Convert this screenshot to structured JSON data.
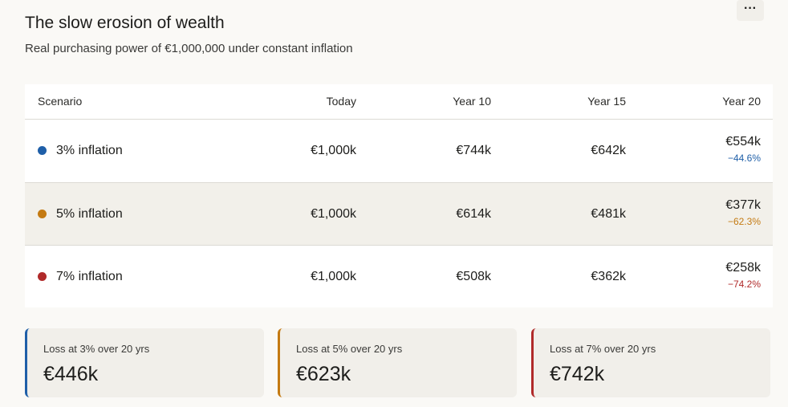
{
  "header": {
    "title": "The slow erosion of wealth",
    "subtitle": "Real purchasing power of €1,000,000 under constant inflation",
    "menu": "···"
  },
  "table": {
    "columns": [
      "Scenario",
      "Today",
      "Year 10",
      "Year 15",
      "Year 20"
    ],
    "rows": [
      {
        "scenario": "3% inflation",
        "values": [
          "€1,000k",
          "€744k",
          "€642k",
          "€554k"
        ],
        "change": "−44.6%"
      },
      {
        "scenario": "5% inflation",
        "values": [
          "€1,000k",
          "€614k",
          "€481k",
          "€377k"
        ],
        "change": "−62.3%"
      },
      {
        "scenario": "7% inflation",
        "values": [
          "€1,000k",
          "€508k",
          "€362k",
          "€258k"
        ],
        "change": "−74.2%"
      }
    ]
  },
  "cards": [
    {
      "label": "Loss at 3% over 20 yrs",
      "value": "€446k"
    },
    {
      "label": "Loss at 5% over 20 yrs",
      "value": "€623k"
    },
    {
      "label": "Loss at 7% over 20 yrs",
      "value": "€742k"
    }
  ]
}
